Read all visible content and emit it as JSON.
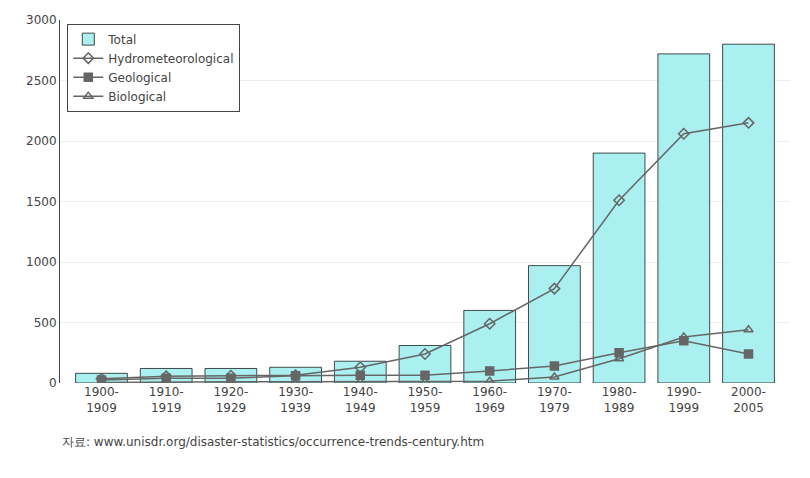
{
  "chart_data": {
    "type": "bar",
    "categories": [
      "1900-\n1909",
      "1910-\n1919",
      "1920-\n1929",
      "1930-\n1939",
      "1940-\n1949",
      "1950-\n1959",
      "1960-\n1969",
      "1970-\n1979",
      "1980-\n1989",
      "1990-\n1999",
      "2000-\n2005"
    ],
    "series": [
      {
        "name": "Total",
        "type": "bar",
        "color": "#aaf0f0",
        "values": [
          80,
          120,
          120,
          130,
          180,
          310,
          600,
          970,
          1900,
          2720,
          2800
        ]
      },
      {
        "name": "Hydrometeorological",
        "type": "line",
        "color": "#666666",
        "marker": "diamond-open",
        "values": [
          35,
          55,
          60,
          65,
          130,
          240,
          490,
          780,
          1510,
          2060,
          2150
        ]
      },
      {
        "name": "Geological",
        "type": "line",
        "color": "#666666",
        "marker": "square",
        "values": [
          25,
          40,
          40,
          60,
          65,
          65,
          100,
          140,
          250,
          350,
          240
        ]
      },
      {
        "name": "Biological",
        "type": "line",
        "color": "#666666",
        "marker": "triangle-up-open",
        "values": [
          5,
          10,
          10,
          10,
          10,
          10,
          15,
          50,
          200,
          380,
          440
        ]
      }
    ],
    "ylim": [
      0,
      3000
    ],
    "yticks": [
      0,
      500,
      1000,
      1500,
      2000,
      2500,
      3000
    ],
    "grid": true,
    "legend": "upper left",
    "annotations": [
      "자료: www.unisdr.org/disaster-statistics/occurrence-trends-century.htm"
    ]
  }
}
